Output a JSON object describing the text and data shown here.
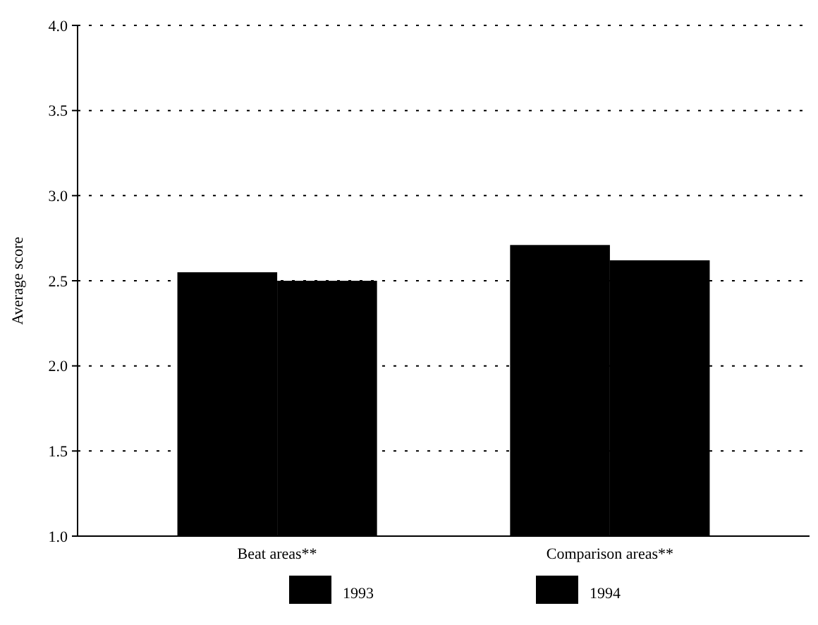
{
  "chart_data": {
    "type": "bar",
    "ylabel": "Average score",
    "categories": [
      "Beat areas**",
      "Comparison areas**"
    ],
    "series": [
      {
        "name": "1993",
        "color": "#000000",
        "values": [
          2.55,
          2.71
        ]
      },
      {
        "name": "1994",
        "color": "#000000",
        "values": [
          2.5,
          2.62
        ]
      }
    ],
    "ylim": [
      1,
      4
    ],
    "yticks": [
      {
        "value": 1,
        "label": "1.0"
      },
      {
        "value": 1.5,
        "label": "1.5"
      },
      {
        "value": 2,
        "label": "2.0"
      },
      {
        "value": 2.5,
        "label": "2.5"
      },
      {
        "value": 3,
        "label": "3.0"
      },
      {
        "value": 3.5,
        "label": "3.5"
      },
      {
        "value": 4,
        "label": "4.0"
      }
    ],
    "grid": "y",
    "line_style": "dotted",
    "legend": "bottom"
  }
}
